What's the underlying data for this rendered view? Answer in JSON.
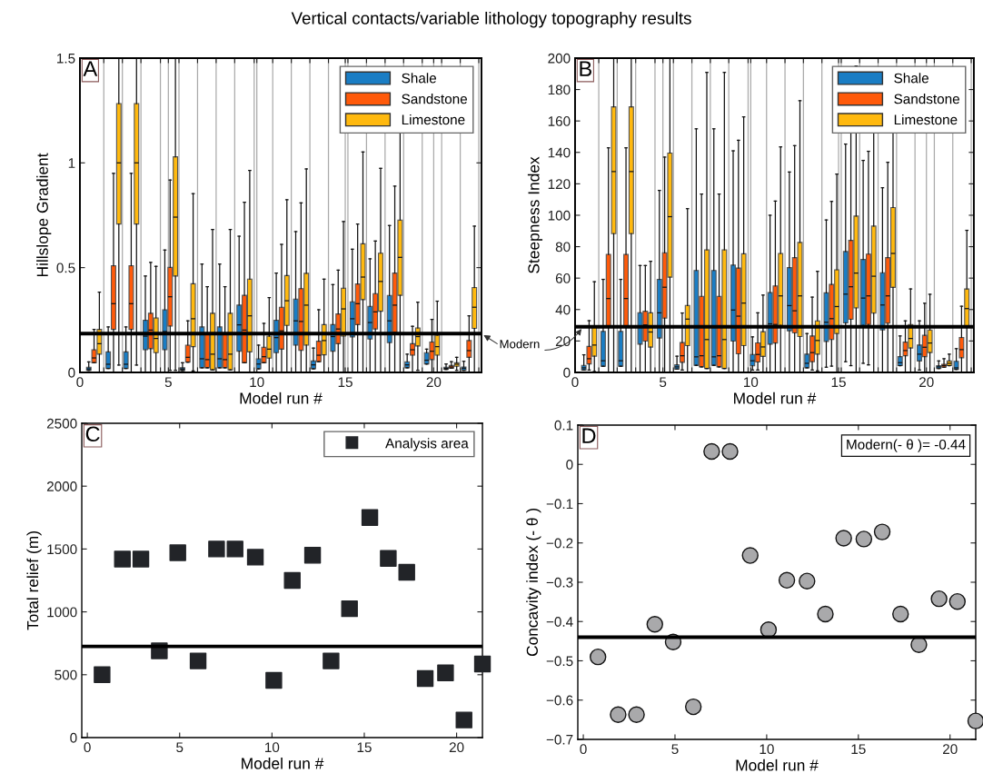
{
  "chart_data": [
    {
      "type": "box",
      "title": "Vertical contacts/variable lithology topography results",
      "xlabel": "Model run #",
      "ylabel": "Hillslope Gradient",
      "annotations": [
        "A"
      ],
      "x": [
        0.8,
        1.9,
        2.9,
        4.0,
        5.1,
        6.1,
        7.2,
        8.2,
        9.3,
        10.4,
        11.4,
        12.5,
        13.5,
        14.6,
        15.7,
        16.7,
        17.8,
        18.8,
        19.9,
        21.0,
        22.0
      ],
      "xlim": [
        0,
        22.7
      ],
      "xticks": [
        0,
        {
          "value": 1.35,
          "label": null
        },
        {
          "value": 2.4,
          "label": null
        },
        {
          "value": 3.45,
          "label": null
        },
        {
          "value": 4.55,
          "label": null
        },
        5,
        {
          "value": 5.6,
          "label": null
        },
        {
          "value": 6.65,
          "label": null
        },
        {
          "value": 7.7,
          "label": null
        },
        {
          "value": 8.75,
          "label": null
        },
        {
          "value": 9.85,
          "label": null
        },
        10,
        {
          "value": 10.9,
          "label": null
        },
        {
          "value": 11.95,
          "label": null
        },
        {
          "value": 13.0,
          "label": null
        },
        {
          "value": 14.05,
          "label": null
        },
        15,
        {
          "value": 15.15,
          "label": null
        },
        {
          "value": 16.2,
          "label": null
        },
        {
          "value": 17.25,
          "label": null
        },
        {
          "value": 18.3,
          "label": null
        },
        {
          "value": 19.35,
          "label": null
        },
        20,
        {
          "value": 20.45,
          "label": null
        },
        {
          "value": 21.5,
          "label": null
        },
        {
          "value": 22.55,
          "label": null
        }
      ],
      "ylim": [
        0,
        1.5
      ],
      "yticks": [
        0,
        0.5,
        1,
        1.5
      ],
      "grid": "x",
      "legend": "top right",
      "ref_lines": [
        {
          "axis": "y",
          "value": 0.185,
          "color": "#000000"
        }
      ],
      "series": [
        {
          "name": "Shale",
          "color": "#1a7dc4",
          "boxes": [
            {
              "low": 0.01,
              "q1": 0.01,
              "median": 0.017,
              "q3": 0.025,
              "high": 0.05
            },
            {
              "low": 0.019,
              "q1": 0.019,
              "median": 0.039,
              "q3": 0.098,
              "high": 0.217
            },
            {
              "low": 0.019,
              "q1": 0.019,
              "median": 0.039,
              "q3": 0.098,
              "high": 0.217
            },
            {
              "low": 0,
              "q1": 0.108,
              "median": 0.173,
              "q3": 0.249,
              "high": 0.46
            },
            {
              "low": 0,
              "q1": 0.108,
              "median": 0.195,
              "q3": 0.299,
              "high": 0.584
            },
            {
              "low": 0.009,
              "q1": 0.009,
              "median": 0.016,
              "q3": 0.022,
              "high": 0.046
            },
            {
              "low": 0.022,
              "q1": 0.022,
              "median": 0.065,
              "q3": 0.217,
              "high": 0.517
            },
            {
              "low": 0.022,
              "q1": 0.022,
              "median": 0.065,
              "q3": 0.217,
              "high": 0.517
            },
            {
              "low": 0,
              "q1": 0.101,
              "median": 0.227,
              "q3": 0.321,
              "high": 0.65
            },
            {
              "low": 0.017,
              "q1": 0.017,
              "median": 0.04,
              "q3": 0.065,
              "high": 0.13
            },
            {
              "low": 0,
              "q1": 0.094,
              "median": 0.166,
              "q3": 0.249,
              "high": 0.474
            },
            {
              "low": 0,
              "q1": 0.13,
              "median": 0.246,
              "q3": 0.35,
              "high": 0.672
            },
            {
              "low": 0.017,
              "q1": 0.017,
              "median": 0.036,
              "q3": 0.055,
              "high": 0.116
            },
            {
              "low": 0,
              "q1": 0.101,
              "median": 0.171,
              "q3": 0.228,
              "high": 0.419
            },
            {
              "low": 0,
              "q1": 0.169,
              "median": 0.256,
              "q3": 0.337,
              "high": 0.588
            },
            {
              "low": 0,
              "q1": 0.159,
              "median": 0.238,
              "q3": 0.315,
              "high": 0.542
            },
            {
              "low": 0,
              "q1": 0.142,
              "median": 0.246,
              "q3": 0.367,
              "high": 0.701
            },
            {
              "low": 0.022,
              "q1": 0.022,
              "median": 0.036,
              "q3": 0.051,
              "high": 0.087
            },
            {
              "low": 0.04,
              "q1": 0.04,
              "median": 0.058,
              "q3": 0.094,
              "high": 0.111
            },
            {
              "low": 0.014,
              "q1": 0.014,
              "median": 0.019,
              "q3": 0.025,
              "high": 0.04
            },
            {
              "low": 0.01,
              "q1": 0.01,
              "median": 0.02,
              "q3": 0.026,
              "high": 0.053
            }
          ]
        },
        {
          "name": "Sandstone",
          "color": "#ff5a0a",
          "boxes": [
            {
              "low": 0.046,
              "q1": 0.046,
              "median": 0.069,
              "q3": 0.108,
              "high": 0.205
            },
            {
              "low": 0,
              "q1": 0.205,
              "median": 0.328,
              "q3": 0.509,
              "high": 0.95
            },
            {
              "low": 0,
              "q1": 0.205,
              "median": 0.328,
              "q3": 0.509,
              "high": 0.95
            },
            {
              "low": 0,
              "q1": 0.113,
              "median": 0.202,
              "q3": 0.282,
              "high": 0.525
            },
            {
              "low": 0.01,
              "q1": 0.221,
              "median": 0.361,
              "q3": 0.501,
              "high": 0.918
            },
            {
              "low": 0.049,
              "q1": 0.049,
              "median": 0.072,
              "q3": 0.13,
              "high": 0.246
            },
            {
              "low": 0.022,
              "q1": 0.022,
              "median": 0.061,
              "q3": 0.188,
              "high": 0.409
            },
            {
              "low": 0.022,
              "q1": 0.022,
              "median": 0.061,
              "q3": 0.188,
              "high": 0.409
            },
            {
              "low": 0.046,
              "q1": 0.046,
              "median": 0.202,
              "q3": 0.368,
              "high": 0.812
            },
            {
              "low": 0.046,
              "q1": 0.046,
              "median": 0.075,
              "q3": 0.12,
              "high": 0.234
            },
            {
              "low": 0,
              "q1": 0.111,
              "median": 0.198,
              "q3": 0.311,
              "high": 0.611
            },
            {
              "low": 0,
              "q1": 0.105,
              "median": 0.243,
              "q3": 0.4,
              "high": 0.809
            },
            {
              "low": 0.051,
              "q1": 0.051,
              "median": 0.082,
              "q3": 0.149,
              "high": 0.299
            },
            {
              "low": 0,
              "q1": 0.137,
              "median": 0.207,
              "q3": 0.279,
              "high": 0.488
            },
            {
              "low": 0,
              "q1": 0.228,
              "median": 0.328,
              "q3": 0.422,
              "high": 0.708
            },
            {
              "low": 0,
              "q1": 0.207,
              "median": 0.289,
              "q3": 0.376,
              "high": 0.627
            },
            {
              "low": 0,
              "q1": 0.191,
              "median": 0.321,
              "q3": 0.474,
              "high": 0.889
            },
            {
              "low": 0,
              "q1": 0.082,
              "median": 0.108,
              "q3": 0.137,
              "high": 0.22
            },
            {
              "low": 0,
              "q1": 0.061,
              "median": 0.101,
              "q3": 0.145,
              "high": 0.253
            },
            {
              "low": 0.02,
              "q1": 0.02,
              "median": 0.026,
              "q3": 0.033,
              "high": 0.051
            },
            {
              "low": 0,
              "q1": 0.072,
              "median": 0.104,
              "q3": 0.152,
              "high": 0.27
            }
          ]
        },
        {
          "name": "Limestone",
          "color": "#ffb90f",
          "boxes": [
            {
              "low": 0,
              "q1": 0.087,
              "median": 0.137,
              "q3": 0.205,
              "high": 0.383
            },
            {
              "low": 0.035,
              "q1": 0.708,
              "median": 1.0,
              "q3": 1.283,
              "high": 1.5
            },
            {
              "low": 0.035,
              "q1": 0.708,
              "median": 1.0,
              "q3": 1.283,
              "high": 1.5
            },
            {
              "low": 0,
              "q1": 0.094,
              "median": 0.162,
              "q3": 0.26,
              "high": 0.506
            },
            {
              "low": 0.01,
              "q1": 0.46,
              "median": 0.741,
              "q3": 1.029,
              "high": 1.5
            },
            {
              "low": 0.007,
              "q1": 0.123,
              "median": 0.256,
              "q3": 0.423,
              "high": 0.853
            },
            {
              "low": 0.012,
              "q1": 0.012,
              "median": 0.087,
              "q3": 0.282,
              "high": 0.682
            },
            {
              "low": 0.012,
              "q1": 0.012,
              "median": 0.087,
              "q3": 0.282,
              "high": 0.682
            },
            {
              "low": 0,
              "q1": 0.098,
              "median": 0.27,
              "q3": 0.445,
              "high": 0.964
            },
            {
              "low": 0,
              "q1": 0.068,
              "median": 0.111,
              "q3": 0.173,
              "high": 0.357
            },
            {
              "low": 0,
              "q1": 0.224,
              "median": 0.342,
              "q3": 0.462,
              "high": 0.824
            },
            {
              "low": 0,
              "q1": 0.13,
              "median": 0.321,
              "q3": 0.473,
              "high": 0.971
            },
            {
              "low": 0,
              "q1": 0.084,
              "median": 0.152,
              "q3": 0.228,
              "high": 0.445
            },
            {
              "low": 0,
              "q1": 0.173,
              "median": 0.303,
              "q3": 0.402,
              "high": 0.72
            },
            {
              "low": 0,
              "q1": 0.347,
              "median": 0.455,
              "q3": 0.614,
              "high": 1.052
            },
            {
              "low": 0,
              "q1": 0.292,
              "median": 0.434,
              "q3": 0.569,
              "high": 0.974
            },
            {
              "low": 0,
              "q1": 0.368,
              "median": 0.549,
              "q3": 0.727,
              "high": 1.2
            },
            {
              "low": 0.01,
              "q1": 0.126,
              "median": 0.171,
              "q3": 0.212,
              "high": 0.335
            },
            {
              "low": 0,
              "q1": 0.082,
              "median": 0.123,
              "q3": 0.178,
              "high": 0.34
            },
            {
              "low": 0.01,
              "q1": 0.029,
              "median": 0.039,
              "q3": 0.046,
              "high": 0.072
            },
            {
              "low": 0,
              "q1": 0.21,
              "median": 0.311,
              "q3": 0.405,
              "high": 0.698
            }
          ]
        }
      ]
    },
    {
      "type": "box",
      "xlabel": "Model run #",
      "ylabel": "Steepness Index",
      "annotations": [
        "B"
      ],
      "x": [
        0.8,
        1.9,
        2.9,
        4.0,
        5.1,
        6.1,
        7.2,
        8.2,
        9.3,
        10.4,
        11.4,
        12.5,
        13.5,
        14.6,
        15.7,
        16.7,
        17.8,
        18.8,
        19.9,
        21.0,
        22.0
      ],
      "xlim": [
        0,
        22.7
      ],
      "xticks": [
        0,
        {
          "value": 1.35,
          "label": null
        },
        {
          "value": 2.4,
          "label": null
        },
        {
          "value": 3.45,
          "label": null
        },
        {
          "value": 4.55,
          "label": null
        },
        5,
        {
          "value": 5.6,
          "label": null
        },
        {
          "value": 6.65,
          "label": null
        },
        {
          "value": 7.7,
          "label": null
        },
        {
          "value": 8.75,
          "label": null
        },
        {
          "value": 9.85,
          "label": null
        },
        10,
        {
          "value": 10.9,
          "label": null
        },
        {
          "value": 11.95,
          "label": null
        },
        {
          "value": 13.0,
          "label": null
        },
        {
          "value": 14.05,
          "label": null
        },
        15,
        {
          "value": 15.15,
          "label": null
        },
        {
          "value": 16.2,
          "label": null
        },
        {
          "value": 17.25,
          "label": null
        },
        {
          "value": 18.3,
          "label": null
        },
        {
          "value": 19.35,
          "label": null
        },
        20,
        {
          "value": 20.45,
          "label": null
        },
        {
          "value": 21.5,
          "label": null
        },
        {
          "value": 22.55,
          "label": null
        }
      ],
      "ylim": [
        0,
        200
      ],
      "yticks": [
        0,
        20,
        40,
        60,
        80,
        100,
        120,
        140,
        160,
        180,
        200
      ],
      "grid": "x",
      "legend": "top right",
      "ref_lines": [
        {
          "axis": "y",
          "value": 29,
          "label": "Modern",
          "color": "#000000"
        }
      ],
      "series": [
        {
          "name": "Shale",
          "color": "#1a7dc4",
          "boxes": [
            {
              "low": 1.5,
              "q1": 1.5,
              "median": 2.9,
              "q3": 4.5,
              "high": 11.2
            },
            {
              "low": 3.9,
              "q1": 3.9,
              "median": 7.4,
              "q3": 26.1,
              "high": 59.2
            },
            {
              "low": 3.9,
              "q1": 3.9,
              "median": 7.4,
              "q3": 26.1,
              "high": 59.2
            },
            {
              "low": 0,
              "q1": 18,
              "median": 28.7,
              "q3": 38,
              "high": 68
            },
            {
              "low": 0,
              "q1": 21.9,
              "median": 37.9,
              "q3": 59.2,
              "high": 115.8
            },
            {
              "low": 2.1,
              "q1": 2.1,
              "median": 3.5,
              "q3": 4.8,
              "high": 10.3
            },
            {
              "low": 4.5,
              "q1": 4.5,
              "median": 9.9,
              "q3": 64.9,
              "high": 155
            },
            {
              "low": 4.5,
              "q1": 4.5,
              "median": 9.9,
              "q3": 64.9,
              "high": 155
            },
            {
              "low": 0,
              "q1": 19.9,
              "median": 39.7,
              "q3": 68.3,
              "high": 141
            },
            {
              "low": 1.5,
              "q1": 4.2,
              "median": 7.4,
              "q3": 11.4,
              "high": 22.6
            },
            {
              "low": 0,
              "q1": 18,
              "median": 30.9,
              "q3": 50.8,
              "high": 100
            },
            {
              "low": 0,
              "q1": 26.5,
              "median": 42.5,
              "q3": 66.7,
              "high": 127.5
            },
            {
              "low": 2.9,
              "q1": 2.9,
              "median": 5.8,
              "q3": 11.6,
              "high": 24.7
            },
            {
              "low": 3.3,
              "q1": 19.7,
              "median": 31.9,
              "q3": 50.6,
              "high": 97
            },
            {
              "low": 6.8,
              "q1": 31.5,
              "median": 49.8,
              "q3": 76.9,
              "high": 145.3
            },
            {
              "low": 5.8,
              "q1": 29.9,
              "median": 47.3,
              "q3": 71.9,
              "high": 134.9
            },
            {
              "low": 0,
              "q1": 27,
              "median": 42.9,
              "q3": 63.4,
              "high": 117.5
            },
            {
              "low": 4.3,
              "q1": 4.3,
              "median": 6.2,
              "q3": 10,
              "high": 23.2
            },
            {
              "low": 1.5,
              "q1": 7.3,
              "median": 11.6,
              "q3": 17.4,
              "high": 32.8
            },
            {
              "low": 2.5,
              "q1": 2.5,
              "median": 3.5,
              "q3": 4.3,
              "high": 7.3
            },
            {
              "low": 1.9,
              "q1": 1.9,
              "median": 2.9,
              "q3": 7.1,
              "high": 15.1
            }
          ]
        },
        {
          "name": "Sandstone",
          "color": "#ff5a0a",
          "boxes": [
            {
              "low": 1.5,
              "q1": 5.4,
              "median": 8.7,
              "q3": 16.5,
              "high": 32.9
            },
            {
              "low": 0,
              "q1": 29.6,
              "median": 47,
              "q3": 75.1,
              "high": 142.9
            },
            {
              "low": 0,
              "q1": 29.6,
              "median": 47,
              "q3": 75.1,
              "high": 142.9
            },
            {
              "low": 0,
              "q1": 19.9,
              "median": 30.2,
              "q3": 38.9,
              "high": 68
            },
            {
              "low": 0,
              "q1": 34.5,
              "median": 54.2,
              "q3": 76.1,
              "high": 137
            },
            {
              "low": 1.5,
              "q1": 6.4,
              "median": 10.6,
              "q3": 19,
              "high": 37.8
            },
            {
              "low": 3.5,
              "q1": 3.5,
              "median": 10.6,
              "q3": 48.4,
              "high": 113.5
            },
            {
              "low": 3.5,
              "q1": 3.5,
              "median": 10.6,
              "q3": 48.4,
              "high": 113.5
            },
            {
              "low": 0,
              "q1": 11.8,
              "median": 35.8,
              "q3": 66.4,
              "high": 147.7
            },
            {
              "low": 1.5,
              "q1": 6.6,
              "median": 11.4,
              "q3": 18.8,
              "high": 37.9
            },
            {
              "low": 0,
              "q1": 18.7,
              "median": 30.5,
              "q3": 55,
              "high": 109
            },
            {
              "low": 0,
              "q1": 25.1,
              "median": 39.2,
              "q3": 73,
              "high": 144.3
            },
            {
              "low": 1.5,
              "q1": 6.8,
              "median": 12.6,
              "q3": 23.2,
              "high": 47.9
            },
            {
              "low": 4,
              "q1": 20.9,
              "median": 34.2,
              "q3": 56,
              "high": 108.8
            },
            {
              "low": 4.3,
              "q1": 33.8,
              "median": 54.5,
              "q3": 84,
              "high": 158
            },
            {
              "low": 4.8,
              "q1": 30.5,
              "median": 48.7,
              "q3": 75.3,
              "high": 140.7
            },
            {
              "low": 0,
              "q1": 31.3,
              "median": 48.7,
              "q3": 73,
              "high": 133.7
            },
            {
              "low": 0,
              "q1": 10.6,
              "median": 13.9,
              "q3": 19.3,
              "high": 32.8
            },
            {
              "low": 0,
              "q1": 10,
              "median": 16,
              "q3": 23.6,
              "high": 44
            },
            {
              "low": 3.3,
              "q1": 3.3,
              "median": 4.4,
              "q3": 5.2,
              "high": 8.7
            },
            {
              "low": 0,
              "q1": 9.3,
              "median": 14.5,
              "q3": 22.2,
              "high": 42.1
            }
          ]
        },
        {
          "name": "Limestone",
          "color": "#ffb90f",
          "boxes": [
            {
              "low": 0.6,
              "q1": 10.3,
              "median": 17.4,
              "q3": 28.7,
              "high": 57.7
            },
            {
              "low": 0,
              "q1": 88.3,
              "median": 127.8,
              "q3": 169,
              "high": 200
            },
            {
              "low": 0,
              "q1": 88.3,
              "median": 127.8,
              "q3": 169,
              "high": 200
            },
            {
              "low": 0,
              "q1": 16.1,
              "median": 25.7,
              "q3": 37.9,
              "high": 70.7
            },
            {
              "low": 0,
              "q1": 60.6,
              "median": 99.1,
              "q3": 139.6,
              "high": 200
            },
            {
              "low": 0,
              "q1": 17,
              "median": 33.9,
              "q3": 42.6,
              "high": 104.2
            },
            {
              "low": 2.5,
              "q1": 2.5,
              "median": 20.9,
              "q3": 78,
              "high": 190.9
            },
            {
              "low": 2.5,
              "q1": 2.5,
              "median": 20.9,
              "q3": 78,
              "high": 190.9
            },
            {
              "low": 0,
              "q1": 17,
              "median": 44.1,
              "q3": 75.5,
              "high": 162.6
            },
            {
              "low": 0,
              "q1": 10.2,
              "median": 16.2,
              "q3": 25.9,
              "high": 49.2
            },
            {
              "low": 0,
              "q1": 29.9,
              "median": 48.7,
              "q3": 75.7,
              "high": 143.5
            },
            {
              "low": 0,
              "q1": 22.8,
              "median": 48.7,
              "q3": 82.7,
              "high": 172.9
            },
            {
              "low": 1,
              "q1": 11.6,
              "median": 20.3,
              "q3": 32.8,
              "high": 64.3
            },
            {
              "low": 0,
              "q1": 24.7,
              "median": 41.9,
              "q3": 65.3,
              "high": 126.2
            },
            {
              "low": 0,
              "q1": 41,
              "median": 63.2,
              "q3": 99.5,
              "high": 195
            },
            {
              "low": 0,
              "q1": 37.7,
              "median": 61.2,
              "q3": 93.1,
              "high": 159.4
            },
            {
              "low": 0,
              "q1": 54.1,
              "median": 75.7,
              "q3": 104.9,
              "high": 185
            },
            {
              "low": 0,
              "q1": 15.5,
              "median": 21.6,
              "q3": 30.5,
              "high": 53.1
            },
            {
              "low": 0,
              "q1": 12.6,
              "median": 18.7,
              "q3": 27,
              "high": 49.7
            },
            {
              "low": 4.3,
              "q1": 4.3,
              "median": 5.8,
              "q3": 7.3,
              "high": 11.6
            },
            {
              "low": 0,
              "q1": 29,
              "median": 40.6,
              "q3": 53.1,
              "high": 90.4
            }
          ]
        }
      ]
    },
    {
      "type": "scatter",
      "xlabel": "Model run #",
      "ylabel": "Total relief (m)",
      "annotations": [
        "C"
      ],
      "x": [
        0.8,
        1.9,
        2.9,
        3.9,
        4.9,
        6.0,
        7.0,
        8.0,
        9.1,
        10.1,
        11.1,
        12.2,
        13.2,
        14.2,
        15.3,
        16.3,
        17.3,
        18.3,
        19.4,
        20.4,
        21.4
      ],
      "xlim": [
        -0.3,
        21.4
      ],
      "xticks": [
        0,
        5,
        10,
        15,
        20
      ],
      "ylim": [
        0,
        2500
      ],
      "yticks": [
        0,
        500,
        1000,
        1500,
        2000,
        2500
      ],
      "marker": "square",
      "legend": "top right",
      "ref_lines": [
        {
          "axis": "y",
          "value": 725,
          "color": "#000000"
        }
      ],
      "series": [
        {
          "name": "Analysis area",
          "color": "#222428",
          "values": [
            500,
            1420,
            1420,
            690,
            1470,
            610,
            1500,
            1500,
            1435,
            455,
            1250,
            1450,
            610,
            1025,
            1750,
            1425,
            1315,
            470,
            515,
            140,
            585
          ]
        }
      ]
    },
    {
      "type": "scatter",
      "xlabel": "Model run #",
      "ylabel": "Concavity index (- θ )",
      "annotations": [
        "D",
        "Modern(- θ )= -0.44"
      ],
      "x": [
        0.8,
        1.9,
        2.9,
        3.9,
        4.9,
        6.0,
        7.0,
        8.0,
        9.1,
        10.1,
        11.1,
        12.2,
        13.2,
        14.2,
        15.3,
        16.3,
        17.3,
        18.3,
        19.4,
        20.4,
        21.4
      ],
      "xlim": [
        -0.3,
        21.4
      ],
      "xticks": [
        0,
        5,
        10,
        15,
        20
      ],
      "ylim": [
        -0.7,
        0.1
      ],
      "yticks": [
        {
          "value": -0.7,
          "label": "−0.7"
        },
        {
          "value": -0.6,
          "label": "−0.6"
        },
        {
          "value": -0.5,
          "label": "−0.5"
        },
        {
          "value": -0.4,
          "label": "−0.4"
        },
        {
          "value": -0.3,
          "label": "−0.3"
        },
        {
          "value": -0.2,
          "label": "−0.2"
        },
        {
          "value": -0.1,
          "label": "−0.1"
        },
        0,
        0.1
      ],
      "marker": "circle",
      "ref_lines": [
        {
          "axis": "y",
          "value": -0.44,
          "color": "#000000"
        }
      ],
      "series": [
        {
          "color": "#a9a9ab",
          "values": [
            -0.49,
            -0.637,
            -0.637,
            -0.407,
            -0.452,
            -0.617,
            0.033,
            0.033,
            -0.232,
            -0.421,
            -0.295,
            -0.297,
            -0.381,
            -0.188,
            -0.19,
            -0.172,
            -0.381,
            -0.459,
            -0.342,
            -0.349,
            -0.653
          ]
        }
      ]
    }
  ]
}
